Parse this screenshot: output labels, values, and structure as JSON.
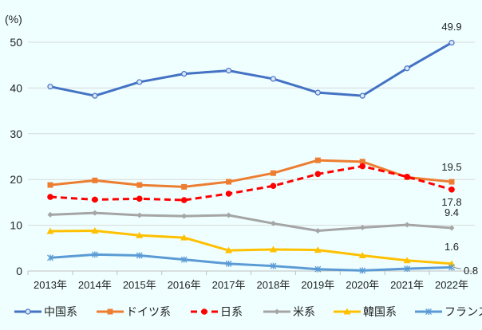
{
  "chart_data": {
    "type": "line",
    "title": "",
    "ylabel": "(%)",
    "xlabel": "",
    "ylim": [
      0,
      50
    ],
    "yticks": [
      "0",
      "10",
      "20",
      "30",
      "40",
      "50"
    ],
    "grid": true,
    "legend_placement": "bottom",
    "categories": [
      "2013年",
      "2014年",
      "2015年",
      "2016年",
      "2017年",
      "2018年",
      "2019年",
      "2020年",
      "2021年",
      "2022年"
    ],
    "series": [
      {
        "name": "中国系",
        "color": "#4472c4",
        "marker": "circle",
        "dash": false,
        "values": [
          40.3,
          38.3,
          41.3,
          43.1,
          43.8,
          42.0,
          39.0,
          38.3,
          44.3,
          49.9
        ],
        "end_label": "49.9"
      },
      {
        "name": "ドイツ系",
        "color": "#ed7d31",
        "marker": "square",
        "dash": false,
        "values": [
          18.8,
          19.8,
          18.8,
          18.4,
          19.5,
          21.4,
          24.2,
          23.9,
          20.5,
          19.5
        ],
        "end_label": "19.5"
      },
      {
        "name": "日系",
        "color": "#ff0000",
        "marker": "dot",
        "dash": true,
        "values": [
          16.2,
          15.6,
          15.8,
          15.5,
          16.9,
          18.6,
          21.2,
          22.9,
          20.6,
          17.8
        ],
        "end_label": "17.8"
      },
      {
        "name": "米系",
        "color": "#a5a5a5",
        "marker": "diamond",
        "dash": false,
        "values": [
          12.3,
          12.7,
          12.2,
          12.0,
          12.2,
          10.4,
          8.8,
          9.5,
          10.1,
          9.4
        ],
        "end_label": "9.4"
      },
      {
        "name": "韓国系",
        "color": "#ffc000",
        "marker": "triangle",
        "dash": false,
        "values": [
          8.7,
          8.8,
          7.8,
          7.3,
          4.5,
          4.7,
          4.6,
          3.4,
          2.3,
          1.6
        ],
        "end_label": "1.6"
      },
      {
        "name": "フランス系",
        "color": "#5b9bd5",
        "marker": "star",
        "dash": false,
        "values": [
          2.9,
          3.6,
          3.4,
          2.5,
          1.6,
          1.1,
          0.4,
          0.1,
          0.5,
          0.8
        ],
        "end_label": "0.8"
      }
    ]
  }
}
